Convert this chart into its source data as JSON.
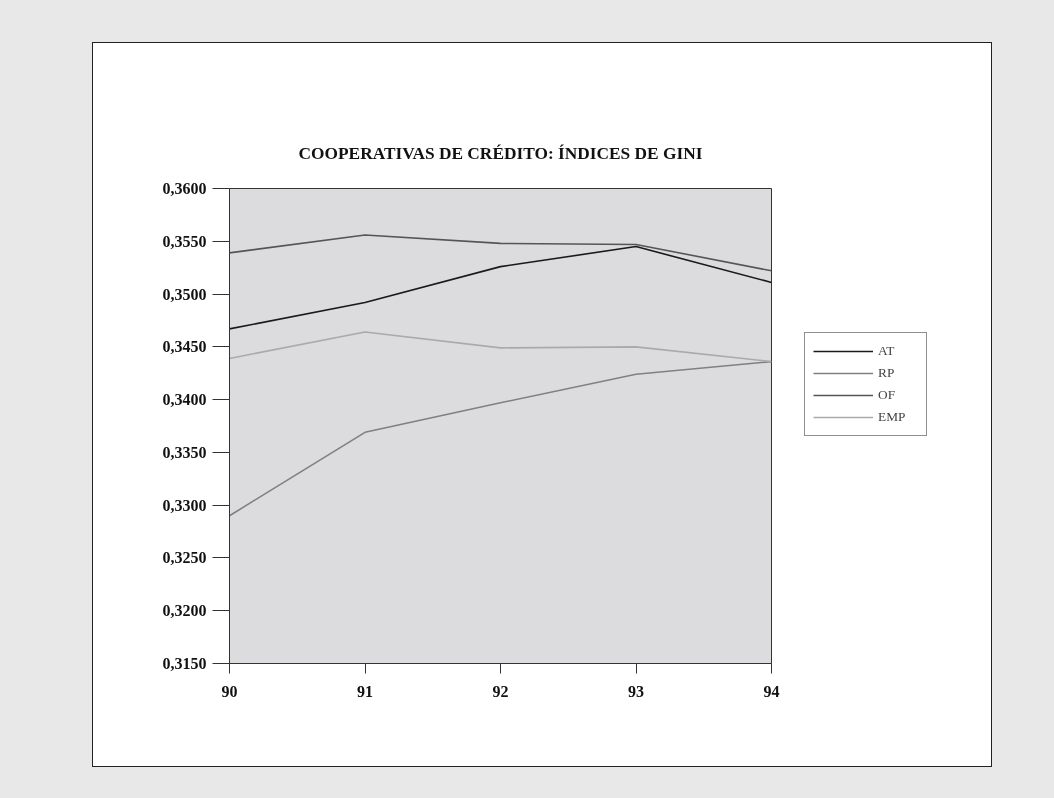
{
  "chart_data": {
    "type": "line",
    "title": "COOPERATIVAS DE CRÉDITO: ÍNDICES DE GINI",
    "x": [
      90,
      91,
      92,
      93,
      94
    ],
    "xlim": [
      90,
      94
    ],
    "xticks": [
      90,
      91,
      92,
      93,
      94
    ],
    "ylim": [
      0.315,
      0.36
    ],
    "yticks": [
      {
        "value": 0.315,
        "label": "0,3150"
      },
      {
        "value": 0.32,
        "label": "0,3200"
      },
      {
        "value": 0.325,
        "label": "0,3250"
      },
      {
        "value": 0.33,
        "label": "0,3300"
      },
      {
        "value": 0.335,
        "label": "0,3350"
      },
      {
        "value": 0.34,
        "label": "0,3400"
      },
      {
        "value": 0.345,
        "label": "0,3450"
      },
      {
        "value": 0.35,
        "label": "0,3500"
      },
      {
        "value": 0.355,
        "label": "0,3550"
      },
      {
        "value": 0.36,
        "label": "0,3600"
      }
    ],
    "series": [
      {
        "name": "AT",
        "color": "#1a1a1a",
        "values": [
          0.3467,
          0.3492,
          0.3526,
          0.3545,
          0.3511
        ]
      },
      {
        "name": "RP",
        "color": "#808080",
        "values": [
          0.329,
          0.3369,
          0.3397,
          0.3424,
          0.3436
        ]
      },
      {
        "name": "OF",
        "color": "#555555",
        "values": [
          0.3539,
          0.3556,
          0.3548,
          0.3547,
          0.3522
        ]
      },
      {
        "name": "EMP",
        "color": "#aaaaaa",
        "values": [
          0.3439,
          0.3464,
          0.3449,
          0.345,
          0.3436
        ]
      }
    ],
    "grid": false,
    "legend": "right",
    "marker": "none",
    "line_style": "solid"
  }
}
